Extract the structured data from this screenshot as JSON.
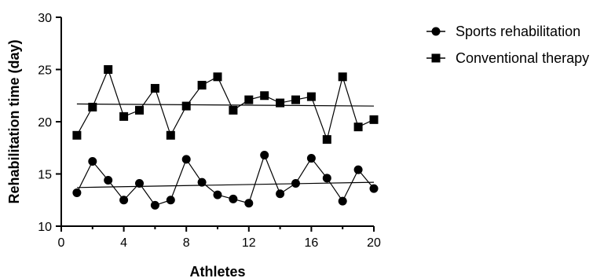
{
  "chart_data": {
    "type": "line",
    "xlabel": "Athletes",
    "ylabel": "Rehabilitation time (day)",
    "xlim": [
      0,
      20
    ],
    "ylim": [
      10,
      30
    ],
    "x_ticks": [
      0,
      4,
      8,
      12,
      16,
      20
    ],
    "y_ticks": [
      10,
      15,
      20,
      25,
      30
    ],
    "grid": false,
    "legend_position": "top-right",
    "x": [
      1,
      2,
      3,
      4,
      5,
      6,
      7,
      8,
      9,
      10,
      11,
      12,
      13,
      14,
      15,
      16,
      17,
      18,
      19,
      20
    ],
    "series": [
      {
        "name": "Sports rehabilitation",
        "marker": "circle",
        "color": "#000000",
        "values": [
          13.2,
          16.2,
          14.4,
          12.5,
          14.1,
          12.0,
          12.5,
          16.4,
          14.2,
          13.0,
          12.6,
          12.2,
          16.8,
          13.1,
          14.1,
          16.5,
          14.6,
          12.4,
          15.4,
          13.6
        ],
        "trend": [
          13.7,
          14.2
        ]
      },
      {
        "name": "Conventional therapy",
        "marker": "square",
        "color": "#000000",
        "values": [
          18.7,
          21.4,
          25.0,
          20.5,
          21.1,
          23.2,
          18.7,
          21.5,
          23.5,
          24.3,
          21.1,
          22.1,
          22.5,
          21.8,
          22.1,
          22.4,
          18.3,
          24.3,
          19.5,
          20.2
        ],
        "trend": [
          21.7,
          21.5
        ]
      }
    ]
  }
}
